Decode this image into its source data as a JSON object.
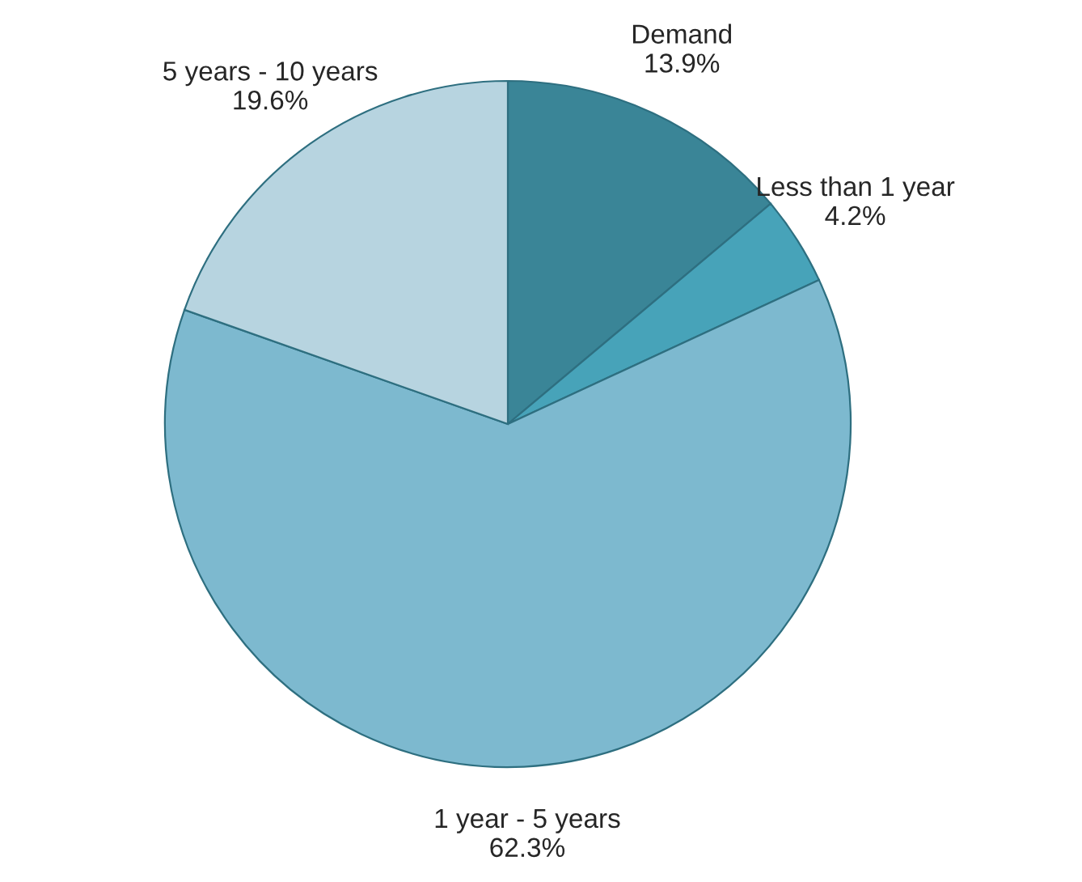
{
  "chart_data": {
    "type": "pie",
    "categories": [
      "Demand",
      "Less than 1 year",
      "1 year - 5 years",
      "5 years - 10 years"
    ],
    "values": [
      13.9,
      4.2,
      62.3,
      19.6
    ],
    "value_labels": [
      "13.9%",
      "4.2%",
      "62.3%",
      "19.6%"
    ],
    "colors": [
      "#3a8597",
      "#47a3b9",
      "#7db9cf",
      "#b7d4e0"
    ],
    "legend": false
  }
}
